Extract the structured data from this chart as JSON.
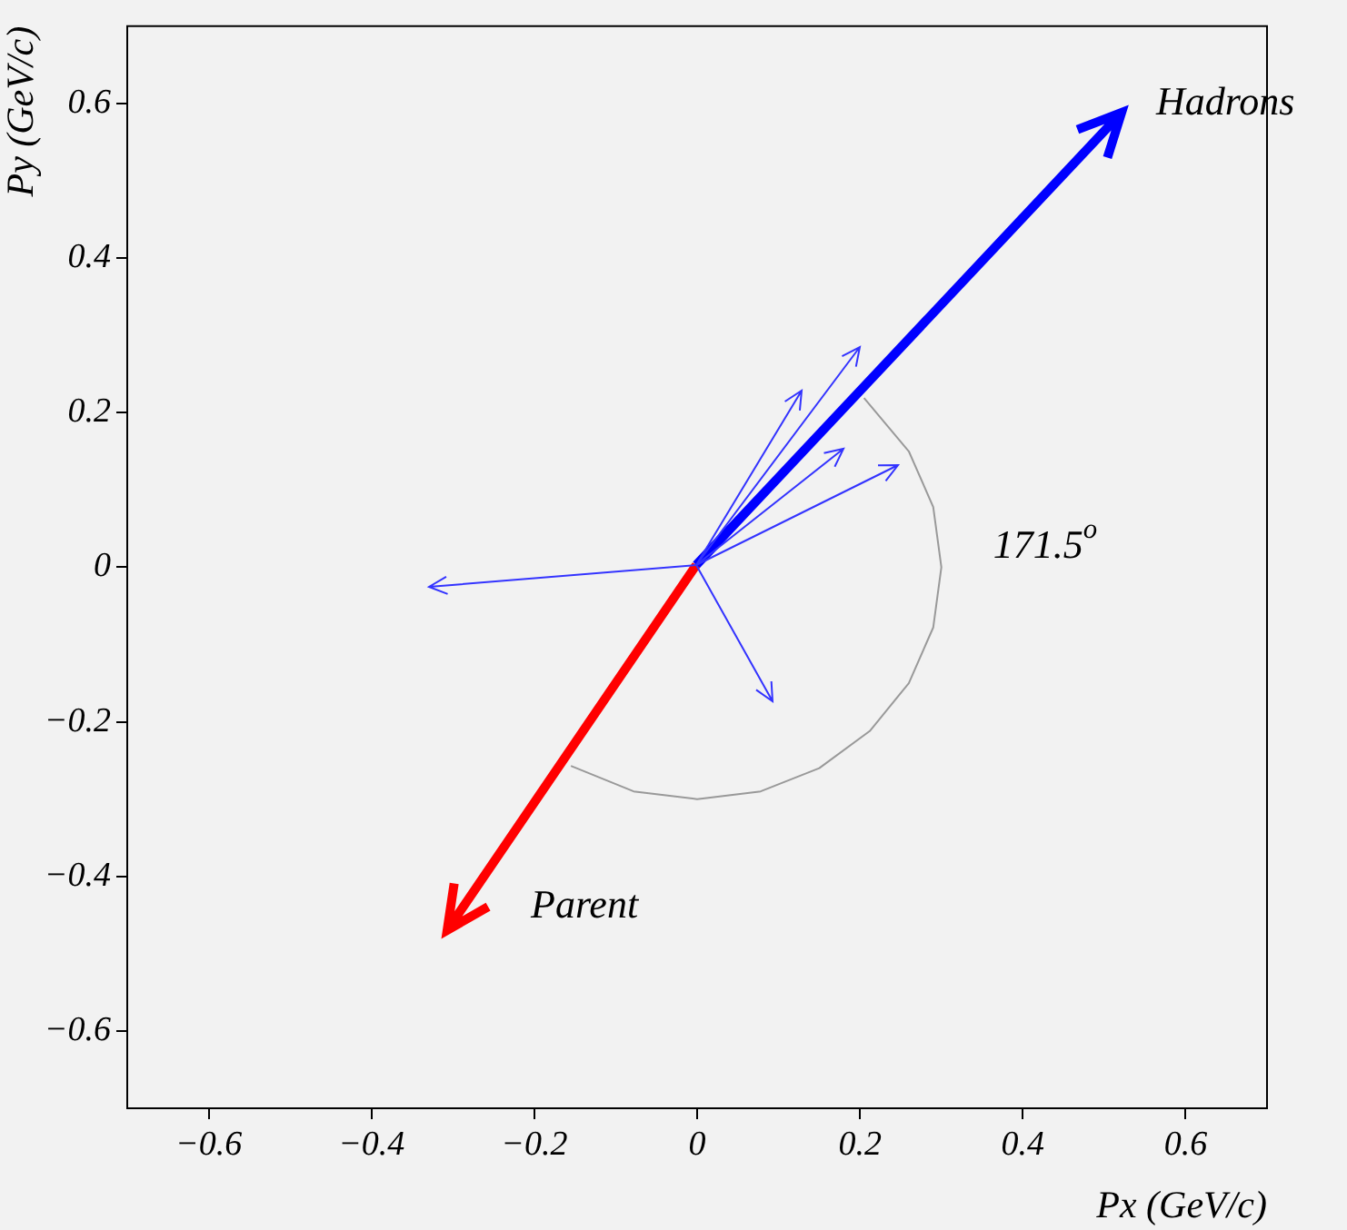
{
  "chart_data": {
    "type": "line",
    "xlabel": "Px (GeV/c)",
    "ylabel": "Py (GeV/c)",
    "xlim": [
      -0.7,
      0.7
    ],
    "ylim": [
      -0.7,
      0.7
    ],
    "xticks": [
      -0.6,
      -0.4,
      -0.2,
      0,
      0.2,
      0.4,
      0.6
    ],
    "yticks": [
      -0.6,
      -0.4,
      -0.2,
      0,
      0.2,
      0.4,
      0.6
    ],
    "grid": false,
    "marker": "none",
    "line_style": "solid",
    "annotations": [
      "171.5$^{o}$",
      "Hadrons",
      "Parent"
    ],
    "series": [
      {
        "color": "#999999",
        "x": [
          0.205,
          0.26,
          0.29,
          0.3,
          0.29,
          0.26,
          0.212,
          0.15,
          0.078,
          0,
          -0.078,
          -0.155
        ],
        "values": [
          0.219,
          0.15,
          0.078,
          0,
          -0.078,
          -0.15,
          -0.212,
          -0.26,
          -0.29,
          -0.3,
          -0.29,
          -0.257
        ]
      }
    ]
  }
}
